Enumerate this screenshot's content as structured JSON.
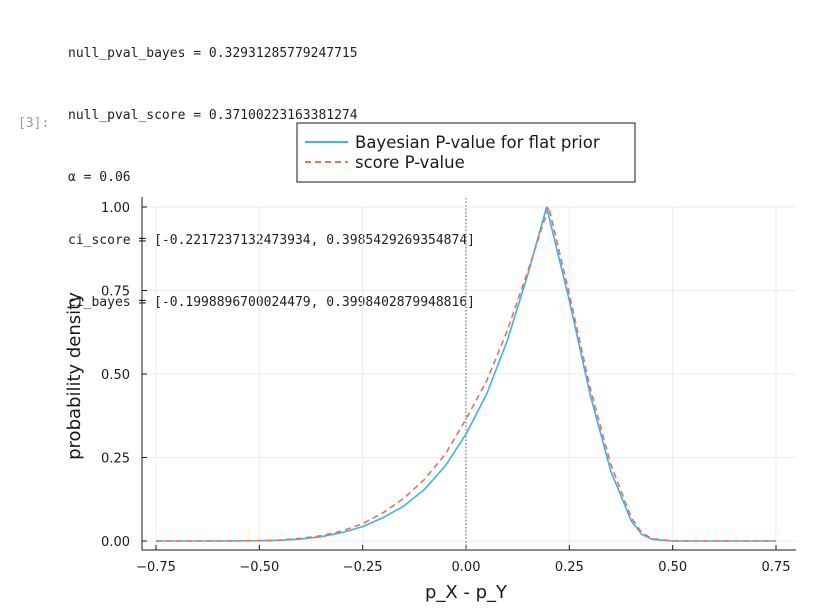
{
  "cell": {
    "prompt": "[3]:",
    "output_lines": [
      "null_pval_bayes = 0.32931285779247715",
      "null_pval_score = 0.37100223163381274",
      "α = 0.06",
      "ci_score = [-0.2217237132473934, 0.3985429269354874]",
      "ci_bayes = [-0.1998896700024479, 0.3998402879948816]"
    ]
  },
  "chart_data": {
    "type": "line",
    "xlabel": "p_X - p_Y",
    "ylabel": "probability density",
    "xlim": [
      -0.75,
      0.75
    ],
    "ylim": [
      0,
      1
    ],
    "xticks": [
      -0.75,
      -0.5,
      -0.25,
      0.0,
      0.25,
      0.5,
      0.75
    ],
    "xtick_labels": [
      "−0.75",
      "−0.50",
      "−0.25",
      "0.00",
      "0.25",
      "0.50",
      "0.75"
    ],
    "yticks": [
      0.0,
      0.25,
      0.5,
      0.75,
      1.0
    ],
    "ytick_labels": [
      "0.00",
      "0.25",
      "0.50",
      "0.75",
      "1.00"
    ],
    "grid": true,
    "legend_position": "top-center (outside plot)",
    "vline_x": 0.0,
    "series": [
      {
        "name": "Bayesian P-value for flat prior",
        "style": "solid",
        "color": "#3fb0f0",
        "x": [
          -0.75,
          -0.6,
          -0.5,
          -0.45,
          -0.4,
          -0.35,
          -0.3,
          -0.25,
          -0.2,
          -0.15,
          -0.1,
          -0.05,
          0.0,
          0.05,
          0.1,
          0.15,
          0.195,
          0.25,
          0.3,
          0.35,
          0.4,
          0.425,
          0.45,
          0.5,
          0.6,
          0.75
        ],
        "y": [
          0.0,
          0.0,
          0.001,
          0.002,
          0.006,
          0.013,
          0.025,
          0.043,
          0.07,
          0.105,
          0.155,
          0.225,
          0.32,
          0.44,
          0.6,
          0.8,
          1.0,
          0.72,
          0.44,
          0.21,
          0.06,
          0.02,
          0.005,
          0.0,
          0.0,
          0.0
        ]
      },
      {
        "name": "score P-value",
        "style": "dashed",
        "color": "#e8735a",
        "x": [
          -0.75,
          -0.6,
          -0.5,
          -0.45,
          -0.4,
          -0.35,
          -0.3,
          -0.25,
          -0.2,
          -0.15,
          -0.1,
          -0.05,
          0.0,
          0.05,
          0.1,
          0.15,
          0.2,
          0.25,
          0.3,
          0.35,
          0.4,
          0.425,
          0.45,
          0.5,
          0.6,
          0.75
        ],
        "y": [
          0.0,
          0.0,
          0.001,
          0.003,
          0.008,
          0.016,
          0.03,
          0.052,
          0.085,
          0.128,
          0.185,
          0.26,
          0.365,
          0.48,
          0.63,
          0.81,
          1.0,
          0.74,
          0.46,
          0.23,
          0.07,
          0.025,
          0.007,
          0.0,
          0.0,
          0.0
        ]
      }
    ]
  }
}
